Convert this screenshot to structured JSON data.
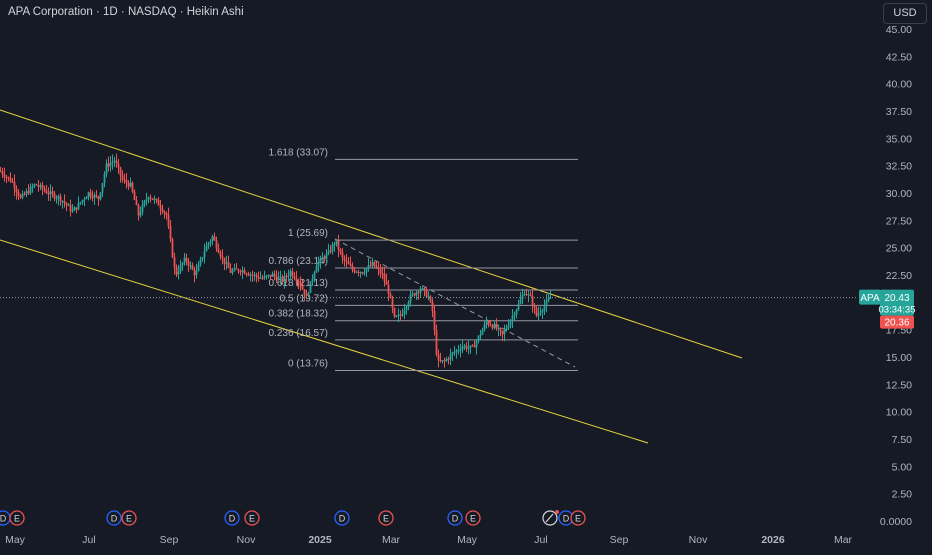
{
  "header": {
    "title": "APA Corporation · 1D · NASDAQ · Heikin Ashi"
  },
  "currency_button": "USD",
  "price_scale": {
    "ticks": [
      "45.00",
      "42.50",
      "40.00",
      "37.50",
      "35.00",
      "32.50",
      "30.00",
      "27.50",
      "25.00",
      "22.50",
      "20.00",
      "17.50",
      "15.00",
      "12.50",
      "10.00",
      "7.50",
      "5.00",
      "2.50",
      "0.0000"
    ],
    "symbol_badge": "APA",
    "last_price": "20.43",
    "countdown": "03:34:35",
    "low_badge": "20.36"
  },
  "time_axis": {
    "labels": [
      "May",
      "Jul",
      "Sep",
      "Nov",
      "2025",
      "Mar",
      "May",
      "Jul",
      "Sep",
      "Nov",
      "2026",
      "Mar"
    ]
  },
  "fib_labels": [
    "1.618 (33.07)",
    "1 (25.69)",
    "0.786 (23.14)",
    "0.618 (21.13)",
    "0.5 (19.72)",
    "0.382 (18.32)",
    "0.236 (16.57)",
    "0 (13.76)"
  ],
  "events": [
    "D",
    "E",
    "D",
    "E",
    "D",
    "E",
    "D",
    "E",
    "D",
    "E",
    "D",
    "E",
    "D",
    "E"
  ],
  "colors": {
    "up": "#26a69a",
    "down": "#ef5350",
    "channel": "#e8d43e",
    "fib": "#9598a1",
    "bg": "#161a25"
  },
  "chart_data": {
    "type": "candlestick",
    "title": "APA Corporation · 1D · NASDAQ · Heikin Ashi",
    "ylim": [
      0,
      45
    ],
    "x": [
      "2024-05",
      "2024-06",
      "2024-07",
      "2024-08",
      "2024-09",
      "2024-10",
      "2024-11",
      "2024-12",
      "2025-01",
      "2025-02",
      "2025-03",
      "2025-04",
      "2025-05",
      "2025-06",
      "2025-07"
    ],
    "series": [
      {
        "close_by_month": [
          32.0,
          30.0,
          33.0,
          29.0,
          23.0,
          24.5,
          22.0,
          22.5,
          25.5,
          22.0,
          19.0,
          14.5,
          16.0,
          20.5,
          20.43
        ]
      }
    ],
    "fibonacci_retracement": [
      {
        "level": 1.618,
        "price": 33.07
      },
      {
        "level": 1,
        "price": 25.69
      },
      {
        "level": 0.786,
        "price": 23.14
      },
      {
        "level": 0.618,
        "price": 21.13
      },
      {
        "level": 0.5,
        "price": 19.72
      },
      {
        "level": 0.382,
        "price": 18.32
      },
      {
        "level": 0.236,
        "price": 16.57
      },
      {
        "level": 0,
        "price": 13.76
      }
    ],
    "last_price": 20.43,
    "grid": false
  }
}
